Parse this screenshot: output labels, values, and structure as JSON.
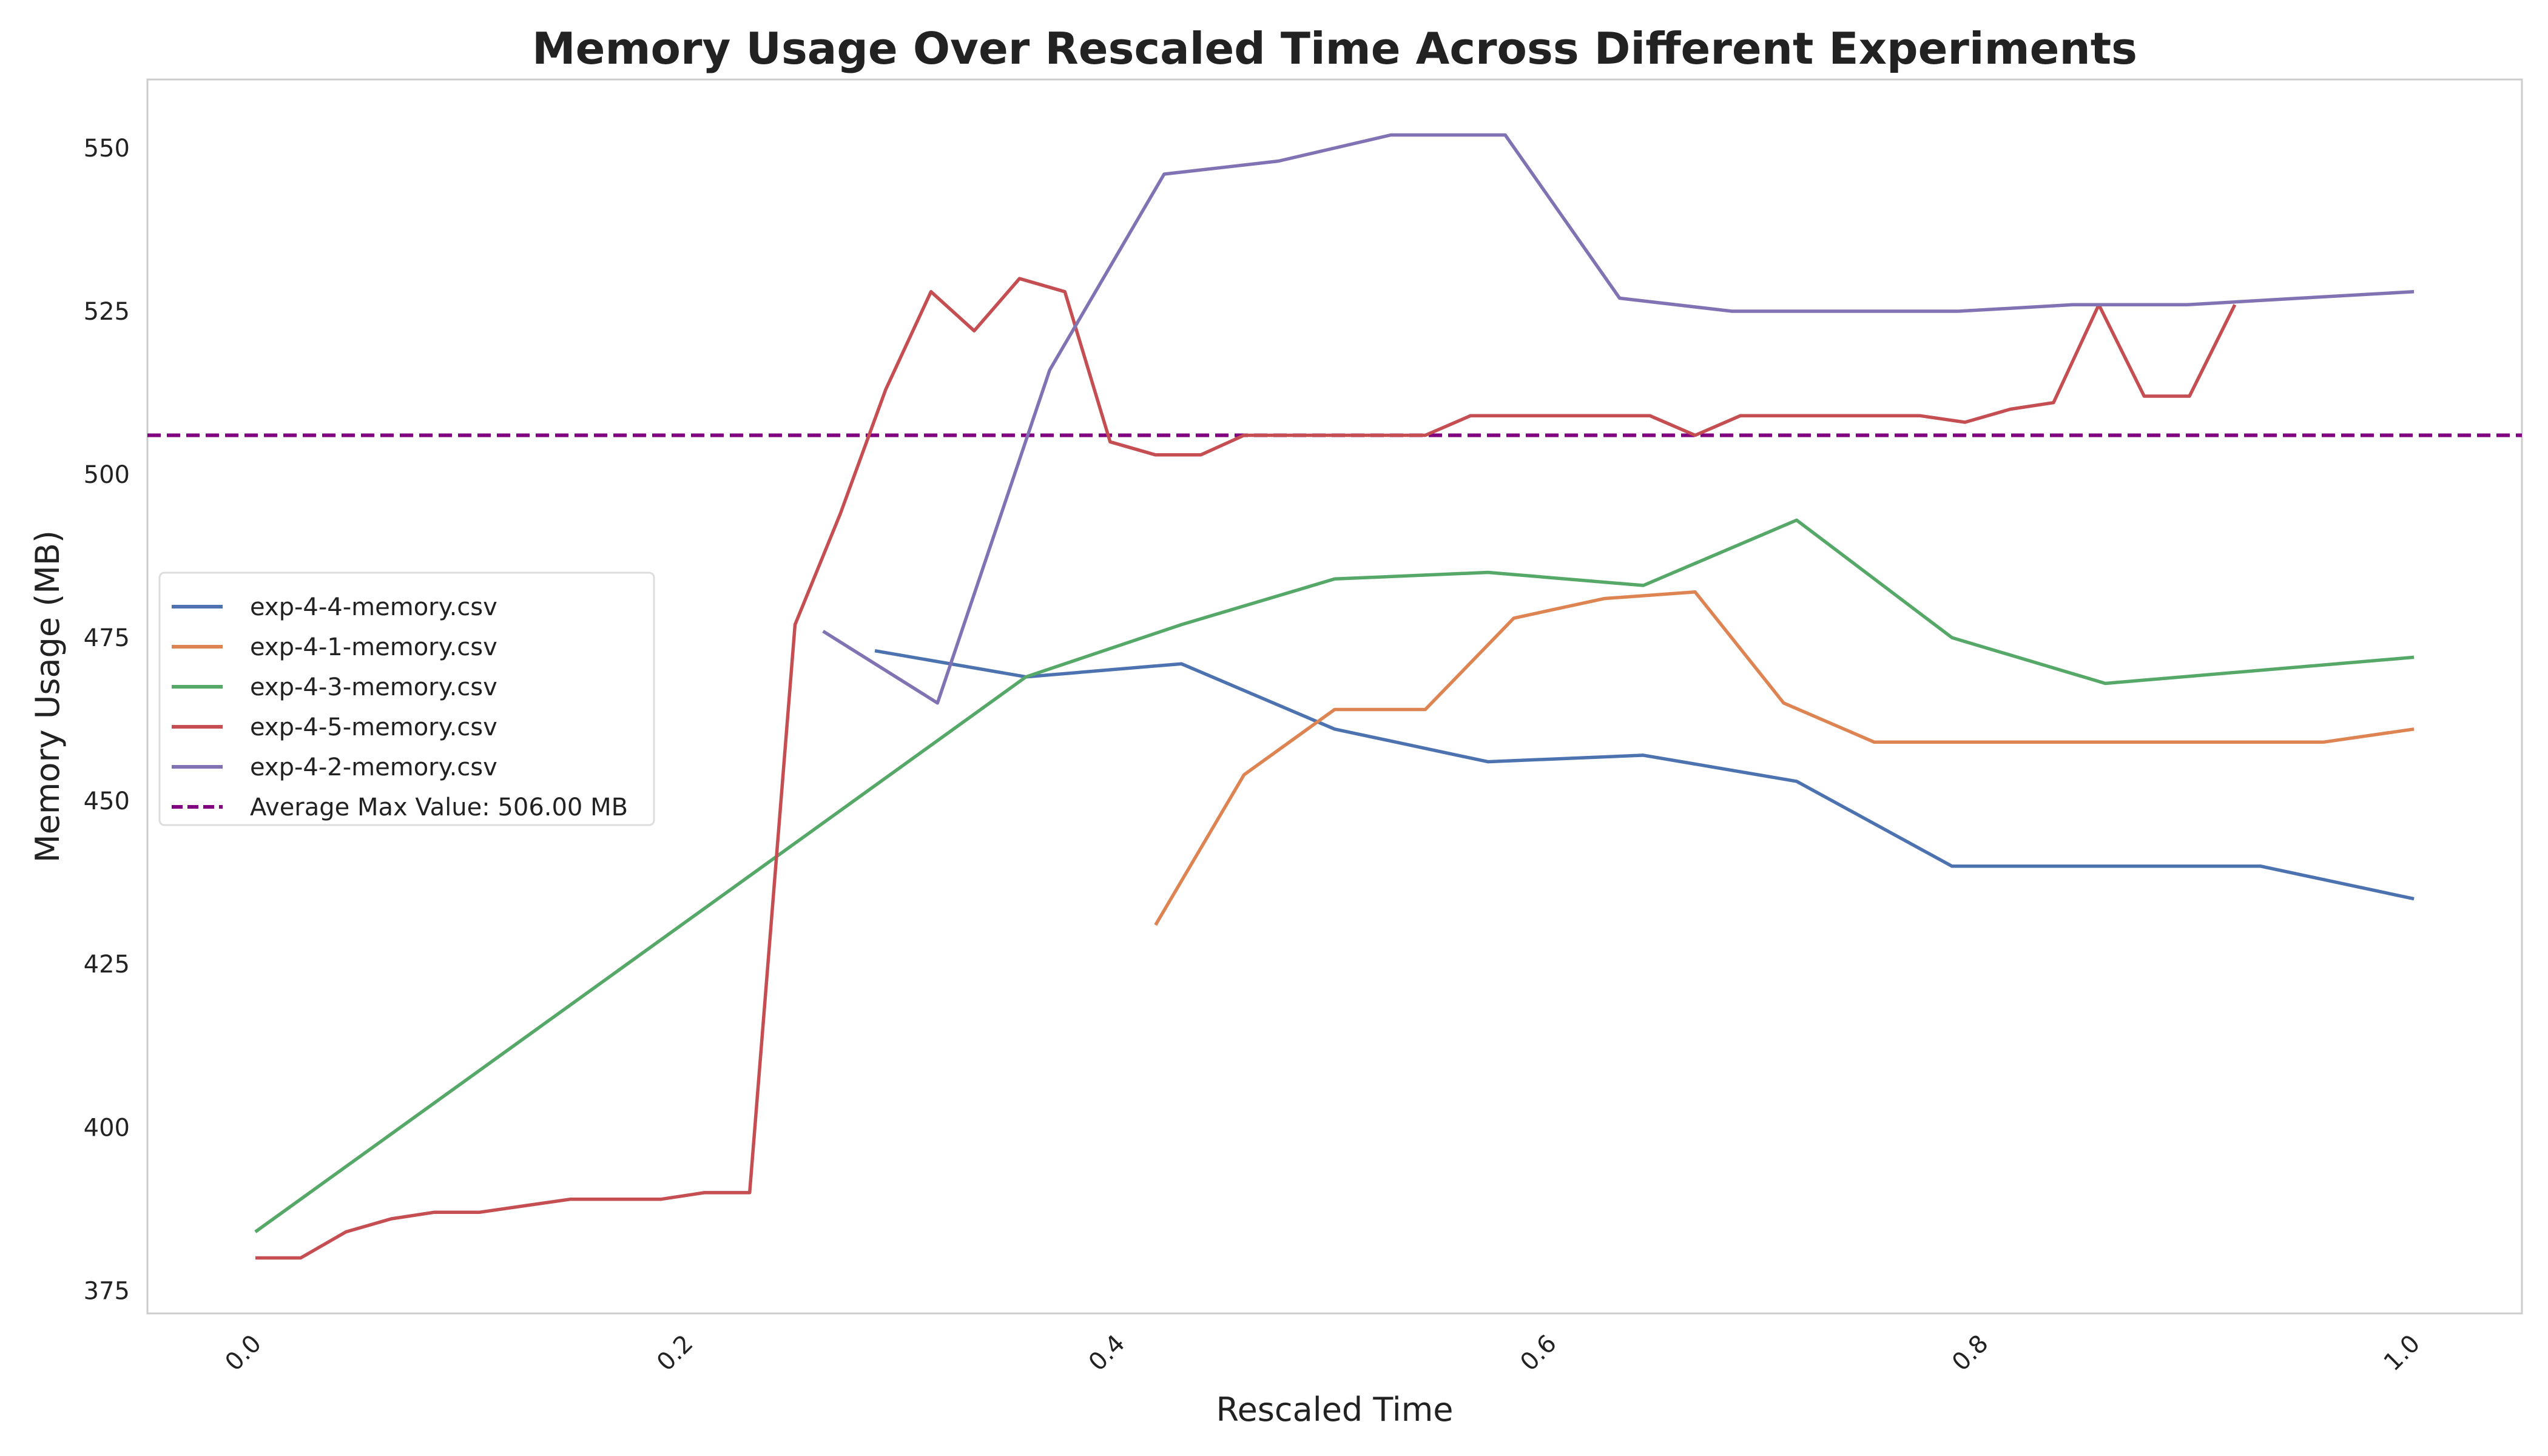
{
  "chart_data": {
    "type": "line",
    "title": "Memory Usage Over Rescaled Time Across Different Experiments",
    "xlabel": "Rescaled Time",
    "ylabel": "Memory Usage (MB)",
    "xlim": [
      -0.05,
      1.05
    ],
    "ylim": [
      371.5,
      560.5
    ],
    "xticks": [
      0.0,
      0.2,
      0.4,
      0.6,
      0.8,
      1.0
    ],
    "xtick_labels": [
      "0.0",
      "0.2",
      "0.4",
      "0.6",
      "0.8",
      "1.0"
    ],
    "yticks": [
      375,
      400,
      425,
      450,
      475,
      500,
      525,
      550
    ],
    "ytick_labels": [
      "375",
      "400",
      "425",
      "450",
      "475",
      "500",
      "525",
      "550"
    ],
    "grid": false,
    "legend_position": "center-left",
    "series": [
      {
        "name": "exp-4-4-memory.csv",
        "color": "#4c72b0",
        "x": [
          0.287,
          0.357,
          0.429,
          0.5,
          0.571,
          0.643,
          0.714,
          0.786,
          0.857,
          0.929,
          1.0
        ],
        "y": [
          473,
          469,
          471,
          461,
          456,
          457,
          453,
          440,
          440,
          440,
          435
        ]
      },
      {
        "name": "exp-4-1-memory.csv",
        "color": "#dd8452",
        "x": [
          0.417,
          0.458,
          0.5,
          0.542,
          0.583,
          0.625,
          0.667,
          0.708,
          0.75,
          0.792,
          0.833,
          0.875,
          0.917,
          0.958,
          1.0
        ],
        "y": [
          431,
          454,
          464,
          464,
          478,
          481,
          482,
          465,
          459,
          459,
          459,
          459,
          459,
          459,
          461
        ]
      },
      {
        "name": "exp-4-3-memory.csv",
        "color": "#55a868",
        "x": [
          0.0,
          0.357,
          0.429,
          0.5,
          0.571,
          0.643,
          0.714,
          0.786,
          0.857,
          1.0
        ],
        "y": [
          384,
          469,
          477,
          484,
          485,
          483,
          493,
          475,
          468,
          472
        ]
      },
      {
        "name": "exp-4-5-memory.csv",
        "color": "#c44e52",
        "x": [
          0.0,
          0.021,
          0.042,
          0.063,
          0.083,
          0.104,
          0.125,
          0.146,
          0.167,
          0.188,
          0.208,
          0.229,
          0.25,
          0.271,
          0.292,
          0.313,
          0.333,
          0.354,
          0.375,
          0.396,
          0.417,
          0.438,
          0.458,
          0.479,
          0.5,
          0.521,
          0.542,
          0.563,
          0.583,
          0.604,
          0.625,
          0.646,
          0.667,
          0.688,
          0.708,
          0.729,
          0.75,
          0.771,
          0.792,
          0.813,
          0.833,
          0.854,
          0.875,
          0.896,
          0.917
        ],
        "y": [
          380,
          380,
          384,
          386,
          387,
          387,
          388,
          389,
          389,
          389,
          390,
          390,
          477,
          494,
          513,
          528,
          522,
          530,
          528,
          505,
          503,
          503,
          506,
          506,
          506,
          506,
          506,
          509,
          509,
          509,
          509,
          509,
          506,
          509,
          509,
          509,
          509,
          509,
          508,
          510,
          511,
          526,
          512,
          512,
          526
        ]
      },
      {
        "name": "exp-4-2-memory.csv",
        "color": "#8172b3",
        "x": [
          0.263,
          0.316,
          0.368,
          0.421,
          0.474,
          0.526,
          0.579,
          0.632,
          0.684,
          0.737,
          0.789,
          0.842,
          0.895,
          0.947,
          1.0
        ],
        "y": [
          476,
          465,
          516,
          546,
          548,
          552,
          552,
          527,
          525,
          525,
          525,
          526,
          526,
          527,
          528
        ]
      }
    ],
    "reference_line": {
      "label": "Average Max Value: 506.00 MB",
      "y": 506,
      "color": "#800080",
      "style": "dashed"
    }
  }
}
